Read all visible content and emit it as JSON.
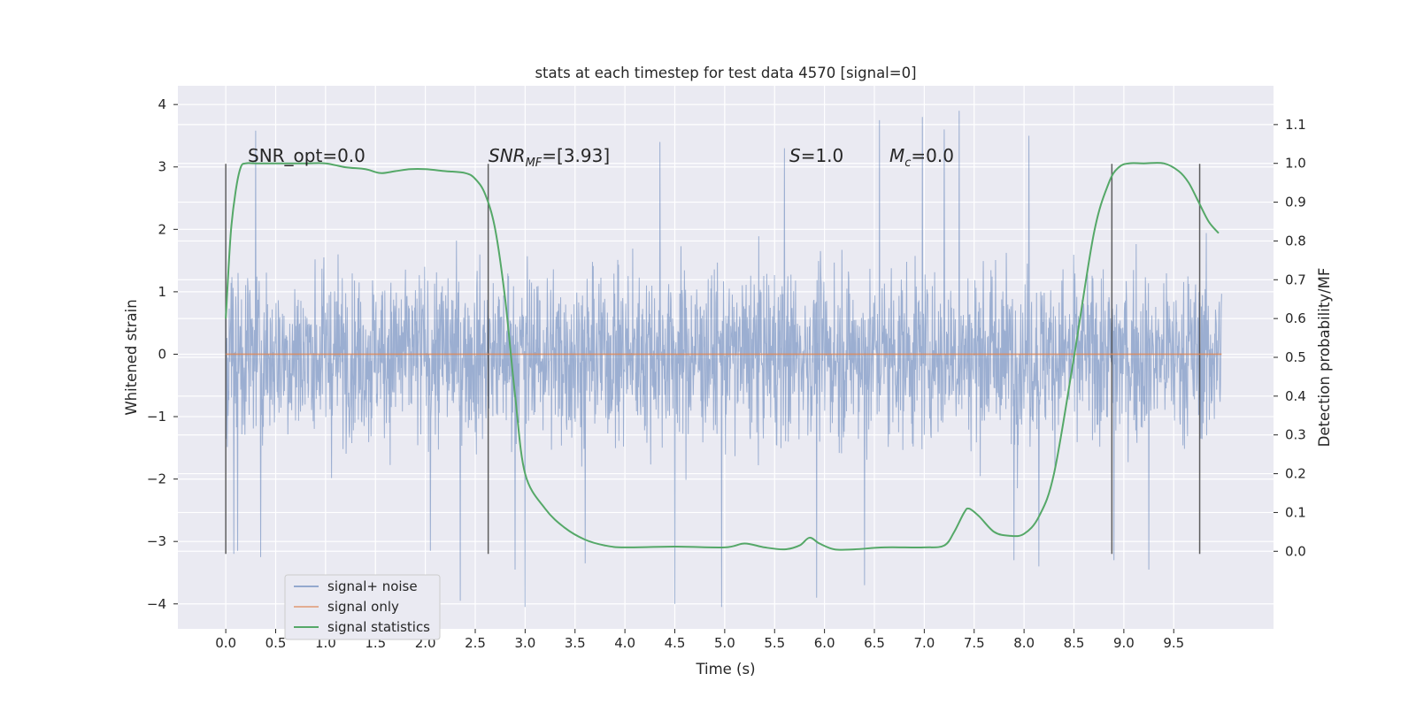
{
  "chart_data": {
    "type": "line",
    "title": "stats at each timestep for test data 4570 [signal=0]",
    "xlabel": "Time (s)",
    "ylabel_left": "Whitened strain",
    "ylabel_right": "Detection probability/MF",
    "xlim": [
      -0.48,
      10.5
    ],
    "ylim_left": [
      -4.4,
      4.3
    ],
    "ylim_right": [
      -0.2,
      1.2
    ],
    "x_ticks": [
      0.0,
      0.5,
      1.0,
      1.5,
      2.0,
      2.5,
      3.0,
      3.5,
      4.0,
      4.5,
      5.0,
      5.5,
      6.0,
      6.5,
      7.0,
      7.5,
      8.0,
      8.5,
      9.0,
      9.5
    ],
    "x_tick_labels": [
      "0.0",
      "0.5",
      "1.0",
      "1.5",
      "2.0",
      "2.5",
      "3.0",
      "3.5",
      "4.0",
      "4.5",
      "5.0",
      "5.5",
      "6.0",
      "6.5",
      "7.0",
      "7.5",
      "8.0",
      "8.5",
      "9.0",
      "9.5"
    ],
    "y_left_ticks": [
      -4,
      -3,
      -2,
      -1,
      0,
      1,
      2,
      3,
      4
    ],
    "y_left_tick_labels": [
      "−4",
      "−3",
      "−2",
      "−1",
      "0",
      "1",
      "2",
      "3",
      "4"
    ],
    "y_right_ticks": [
      0.0,
      0.1,
      0.2,
      0.3,
      0.4,
      0.5,
      0.6,
      0.7,
      0.8,
      0.9,
      1.0,
      1.1
    ],
    "y_right_tick_labels": [
      "0.0",
      "0.1",
      "0.2",
      "0.3",
      "0.4",
      "0.5",
      "0.6",
      "0.7",
      "0.8",
      "0.9",
      "1.0",
      "1.1"
    ],
    "grid": true,
    "legend_location": "lower left",
    "series": [
      {
        "name": "signal+ noise",
        "axis": "left",
        "color": "#4c72b0",
        "opacity": 0.5,
        "x_range": [
          0.0,
          9.98
        ],
        "typical_amplitude": [
          -2.0,
          2.0
        ],
        "peaks": [
          [
            0.3,
            3.58
          ],
          [
            0.08,
            -3.2
          ],
          [
            0.12,
            -3.15
          ],
          [
            0.35,
            -3.25
          ],
          [
            2.05,
            -3.15
          ],
          [
            2.35,
            -3.95
          ],
          [
            3.0,
            -4.05
          ],
          [
            2.9,
            -3.45
          ],
          [
            3.6,
            -3.35
          ],
          [
            4.5,
            -3.3
          ],
          [
            4.5,
            -4.0
          ],
          [
            4.97,
            -4.05
          ],
          [
            5.92,
            -3.9
          ],
          [
            6.4,
            -3.7
          ],
          [
            6.55,
            3.75
          ],
          [
            6.98,
            3.8
          ],
          [
            7.35,
            3.9
          ],
          [
            7.9,
            -3.3
          ],
          [
            8.15,
            -3.4
          ],
          [
            8.9,
            -3.3
          ],
          [
            9.25,
            -3.45
          ],
          [
            7.2,
            3.6
          ],
          [
            8.05,
            3.5
          ],
          [
            4.35,
            3.4
          ],
          [
            5.6,
            3.3
          ]
        ]
      },
      {
        "name": "signal only",
        "axis": "left",
        "color": "#dd8452",
        "x": [
          0.0,
          9.98
        ],
        "y": [
          0.0,
          0.0
        ]
      },
      {
        "name": "signal statistics",
        "axis": "right",
        "color": "#55a868",
        "x": [
          0.0,
          0.05,
          0.1,
          0.15,
          0.2,
          0.3,
          0.5,
          0.8,
          1.0,
          1.2,
          1.4,
          1.55,
          1.7,
          1.85,
          2.0,
          2.2,
          2.4,
          2.5,
          2.6,
          2.7,
          2.8,
          2.9,
          3.0,
          3.2,
          3.4,
          3.6,
          3.8,
          4.0,
          4.5,
          5.0,
          5.2,
          5.4,
          5.6,
          5.75,
          5.85,
          5.95,
          6.1,
          6.3,
          6.6,
          7.0,
          7.2,
          7.3,
          7.4,
          7.45,
          7.55,
          7.7,
          7.85,
          8.0,
          8.15,
          8.3,
          8.5,
          8.7,
          8.85,
          8.95,
          9.05,
          9.2,
          9.4,
          9.55,
          9.65,
          9.75,
          9.85,
          9.95
        ],
        "y": [
          0.6,
          0.82,
          0.93,
          0.99,
          1.0,
          1.0,
          1.0,
          1.0,
          1.0,
          0.99,
          0.985,
          0.975,
          0.98,
          0.985,
          0.985,
          0.98,
          0.975,
          0.96,
          0.92,
          0.83,
          0.65,
          0.4,
          0.2,
          0.11,
          0.06,
          0.03,
          0.015,
          0.01,
          0.012,
          0.01,
          0.02,
          0.01,
          0.005,
          0.015,
          0.035,
          0.02,
          0.005,
          0.005,
          0.01,
          0.01,
          0.015,
          0.05,
          0.1,
          0.11,
          0.09,
          0.05,
          0.04,
          0.045,
          0.09,
          0.2,
          0.5,
          0.82,
          0.95,
          0.99,
          1.0,
          1.0,
          1.0,
          0.98,
          0.95,
          0.9,
          0.85,
          0.82
        ]
      }
    ],
    "markers": {
      "color": "#444444",
      "x": [
        0.0,
        2.63,
        8.88,
        9.76
      ]
    },
    "annotations": [
      {
        "text": "SNR_opt=0.0",
        "x": 0.2,
        "y_left": 3.0,
        "italic": false
      },
      {
        "text": "SNRMF=[3.93]",
        "x": 2.6,
        "y_left": 3.0,
        "italic": true
      },
      {
        "text": "S=1.0",
        "x": 5.6,
        "y_left": 3.0,
        "italic": true
      },
      {
        "text": "Mc=0.0",
        "x": 6.6,
        "y_left": 3.0,
        "italic": true
      }
    ],
    "annotation_parts": {
      "snr_opt": "SNR_opt=0.0",
      "snr_mf_main": "SNR",
      "snr_mf_sub": "MF",
      "snr_mf_value": "=[3.93]",
      "s_main": "S",
      "s_value": "=1.0",
      "mc_main": "M",
      "mc_sub": "c",
      "mc_value": "=0.0"
    }
  }
}
